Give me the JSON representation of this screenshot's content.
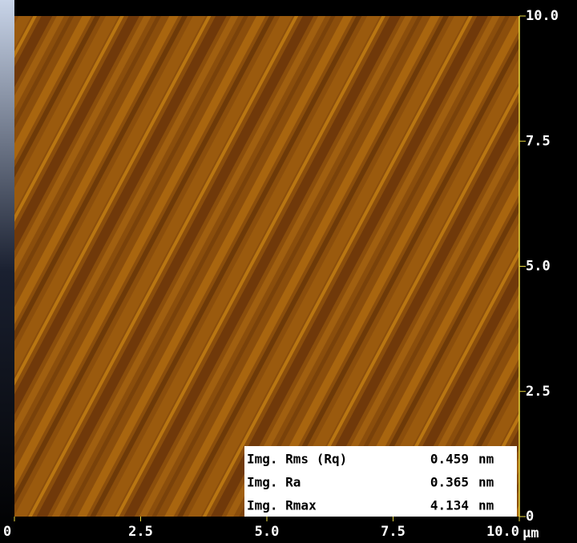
{
  "image": {
    "x_axis": {
      "ticks": [
        {
          "value": 0,
          "label": "0"
        },
        {
          "value": 2.5,
          "label": "2.5"
        },
        {
          "value": 5,
          "label": "5.0"
        },
        {
          "value": 7.5,
          "label": "7.5"
        },
        {
          "value": 10,
          "label": "10.0"
        }
      ],
      "unit": "μm",
      "range": [
        0,
        10
      ]
    },
    "y_axis": {
      "ticks": [
        {
          "value": 0,
          "label": "0"
        },
        {
          "value": 2.5,
          "label": "2.5"
        },
        {
          "value": 5,
          "label": "5.0"
        },
        {
          "value": 7.5,
          "label": "7.5"
        },
        {
          "value": 10,
          "label": "10.0"
        }
      ],
      "range": [
        0,
        10
      ]
    },
    "stats": [
      {
        "label": "Img. Rms (Rq)",
        "value": 0.459,
        "unit": "nm"
      },
      {
        "label": "Img. Ra",
        "value": 0.365,
        "unit": "nm"
      },
      {
        "label": "Img. Rmax",
        "value": 4.134,
        "unit": "nm"
      }
    ]
  }
}
